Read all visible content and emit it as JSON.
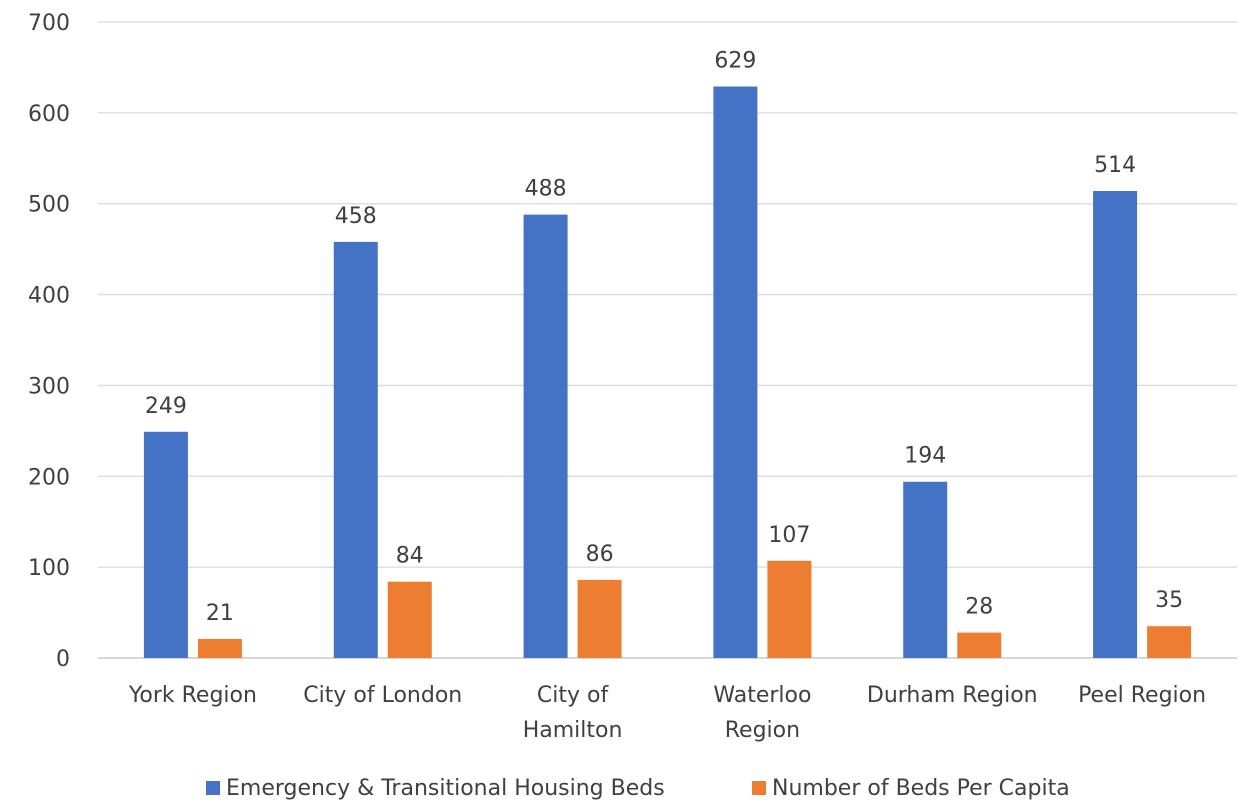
{
  "chart_data": {
    "type": "bar",
    "title": "",
    "xlabel": "",
    "ylabel": "",
    "ylim": [
      0,
      700
    ],
    "yticks": [
      0,
      100,
      200,
      300,
      400,
      500,
      600,
      700
    ],
    "grid": true,
    "legend_position": "bottom",
    "categories": [
      [
        "York Region"
      ],
      [
        "City of London"
      ],
      [
        "City of",
        "Hamilton"
      ],
      [
        "Waterloo",
        "Region"
      ],
      [
        "Durham Region"
      ],
      [
        "Peel Region"
      ]
    ],
    "series": [
      {
        "name": "Emergency & Transitional Housing Beds",
        "color": "#4472c4",
        "values": [
          249,
          458,
          488,
          629,
          194,
          514
        ]
      },
      {
        "name": "Number of Beds Per Capita",
        "color": "#ed7d31",
        "values": [
          21,
          84,
          86,
          107,
          28,
          35
        ]
      }
    ]
  }
}
